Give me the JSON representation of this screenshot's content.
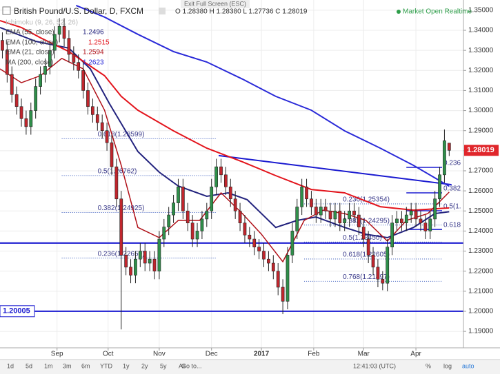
{
  "chart_data": {
    "type": "candlestick",
    "title": "British Pound/U.S. Dollar, D, FXCM",
    "ohlc_text": "O 1.28380 H 1.28380 L 1.27736 C 1.28019",
    "status": "Market Open Realtime",
    "exit_text": "Exit Full Screen (ESC)",
    "ichimoku_label": "Ichimoku (9, 26, 52, 26)",
    "x": [
      1,
      3,
      5,
      7,
      9,
      11,
      13,
      15,
      17,
      19,
      21,
      23,
      25,
      27,
      29,
      31,
      33,
      35,
      37,
      39,
      41,
      43,
      45,
      47,
      49,
      51,
      53,
      55,
      57,
      59,
      61,
      63,
      65,
      67,
      69,
      71,
      73,
      75,
      77,
      79,
      81,
      83,
      85,
      87,
      89,
      91,
      93,
      95,
      97,
      99,
      101,
      103,
      105,
      107,
      109,
      111,
      113,
      115,
      117,
      119,
      121,
      123,
      125,
      127,
      129,
      131,
      133,
      135,
      137,
      139,
      141,
      143,
      145,
      147,
      149,
      151,
      153,
      155,
      157,
      159,
      161,
      163,
      165,
      167,
      169,
      171,
      173,
      175,
      177,
      179,
      181,
      183,
      185,
      187,
      189
    ],
    "open": [
      1.335,
      1.33,
      1.318,
      1.308,
      1.302,
      1.296,
      1.292,
      1.3,
      1.312,
      1.318,
      1.322,
      1.33,
      1.338,
      1.342,
      1.336,
      1.328,
      1.324,
      1.32,
      1.31,
      1.302,
      1.298,
      1.294,
      1.29,
      1.284,
      1.272,
      1.256,
      1.228,
      1.222,
      1.218,
      1.226,
      1.23,
      1.224,
      1.226,
      1.22,
      1.236,
      1.242,
      1.248,
      1.254,
      1.262,
      1.25,
      1.244,
      1.236,
      1.24,
      1.246,
      1.25,
      1.262,
      1.272,
      1.268,
      1.262,
      1.256,
      1.25,
      1.244,
      1.238,
      1.236,
      1.232,
      1.23,
      1.226,
      1.224,
      1.22,
      1.212,
      1.205,
      1.228,
      1.24,
      1.252,
      1.262,
      1.256,
      1.252,
      1.248,
      1.252,
      1.25,
      1.246,
      1.25,
      1.244,
      1.246,
      1.25,
      1.248,
      1.242,
      1.236,
      1.228,
      1.222,
      1.216,
      1.214,
      1.232,
      1.244,
      1.246,
      1.244,
      1.248,
      1.25,
      1.246,
      1.244,
      1.24,
      1.246,
      1.256,
      1.268,
      1.2838
    ],
    "high": [
      1.339,
      1.334,
      1.322,
      1.312,
      1.306,
      1.3,
      1.304,
      1.316,
      1.322,
      1.326,
      1.334,
      1.342,
      1.346,
      1.346,
      1.34,
      1.332,
      1.328,
      1.324,
      1.314,
      1.306,
      1.302,
      1.298,
      1.294,
      1.288,
      1.276,
      1.26,
      1.232,
      1.226,
      1.23,
      1.234,
      1.234,
      1.23,
      1.23,
      1.24,
      1.246,
      1.252,
      1.258,
      1.266,
      1.266,
      1.254,
      1.248,
      1.244,
      1.25,
      1.254,
      1.266,
      1.276,
      1.276,
      1.272,
      1.266,
      1.26,
      1.254,
      1.248,
      1.242,
      1.24,
      1.236,
      1.234,
      1.23,
      1.228,
      1.224,
      1.216,
      1.232,
      1.244,
      1.256,
      1.266,
      1.266,
      1.26,
      1.256,
      1.256,
      1.256,
      1.254,
      1.254,
      1.254,
      1.25,
      1.254,
      1.254,
      1.252,
      1.246,
      1.24,
      1.232,
      1.226,
      1.22,
      1.236,
      1.248,
      1.25,
      1.25,
      1.252,
      1.254,
      1.254,
      1.25,
      1.248,
      1.25,
      1.26,
      1.272,
      1.2906,
      1.2838
    ],
    "low": [
      1.326,
      1.314,
      1.304,
      1.298,
      1.292,
      1.288,
      1.288,
      1.296,
      1.308,
      1.314,
      1.318,
      1.326,
      1.334,
      1.332,
      1.324,
      1.32,
      1.316,
      1.306,
      1.298,
      1.294,
      1.29,
      1.286,
      1.28,
      1.268,
      1.252,
      1.191,
      1.218,
      1.214,
      1.214,
      1.222,
      1.22,
      1.22,
      1.216,
      1.216,
      1.232,
      1.238,
      1.244,
      1.25,
      1.246,
      1.24,
      1.232,
      1.232,
      1.236,
      1.242,
      1.246,
      1.258,
      1.264,
      1.258,
      1.252,
      1.246,
      1.24,
      1.234,
      1.232,
      1.228,
      1.226,
      1.222,
      1.22,
      1.216,
      1.208,
      1.1986,
      1.201,
      1.224,
      1.236,
      1.248,
      1.252,
      1.248,
      1.244,
      1.244,
      1.246,
      1.242,
      1.242,
      1.24,
      1.24,
      1.242,
      1.244,
      1.238,
      1.232,
      1.224,
      1.218,
      1.212,
      1.2105,
      1.21,
      1.228,
      1.24,
      1.24,
      1.24,
      1.244,
      1.242,
      1.24,
      1.236,
      1.236,
      1.242,
      1.252,
      1.264,
      1.27736
    ],
    "close": [
      1.33,
      1.318,
      1.308,
      1.302,
      1.296,
      1.292,
      1.3,
      1.312,
      1.318,
      1.322,
      1.33,
      1.338,
      1.342,
      1.336,
      1.328,
      1.324,
      1.32,
      1.31,
      1.302,
      1.298,
      1.294,
      1.29,
      1.284,
      1.272,
      1.256,
      1.228,
      1.222,
      1.218,
      1.226,
      1.23,
      1.224,
      1.226,
      1.22,
      1.236,
      1.242,
      1.248,
      1.254,
      1.262,
      1.25,
      1.244,
      1.236,
      1.24,
      1.246,
      1.25,
      1.262,
      1.272,
      1.268,
      1.262,
      1.256,
      1.25,
      1.244,
      1.238,
      1.236,
      1.232,
      1.23,
      1.226,
      1.224,
      1.22,
      1.212,
      1.205,
      1.228,
      1.24,
      1.252,
      1.262,
      1.256,
      1.252,
      1.248,
      1.252,
      1.25,
      1.246,
      1.25,
      1.244,
      1.246,
      1.25,
      1.248,
      1.242,
      1.236,
      1.228,
      1.222,
      1.216,
      1.214,
      1.232,
      1.244,
      1.246,
      1.244,
      1.248,
      1.25,
      1.246,
      1.244,
      1.24,
      1.246,
      1.256,
      1.268,
      1.285,
      1.28019
    ],
    "up_color": "#2f8f4a",
    "down_color": "#c0262d",
    "xlim": [
      0,
      195
    ],
    "ylim": [
      1.1818,
      1.3551
    ],
    "xticks": [
      {
        "value": 24,
        "label": "Sep"
      },
      {
        "value": 45.5,
        "label": "Oct"
      },
      {
        "value": 67,
        "label": "Nov"
      },
      {
        "value": 89,
        "label": "Dec"
      },
      {
        "value": 110,
        "label": "2017"
      },
      {
        "value": 132,
        "label": "Feb"
      },
      {
        "value": 153,
        "label": "Mar"
      },
      {
        "value": 175,
        "label": "Apr"
      }
    ],
    "yticks": [
      {
        "value": 1.19,
        "label": "1.19000"
      },
      {
        "value": 1.2,
        "label": "1.20000"
      },
      {
        "value": 1.21,
        "label": "1.21000"
      },
      {
        "value": 1.22,
        "label": "1.22000"
      },
      {
        "value": 1.23,
        "label": "1.23000"
      },
      {
        "value": 1.24,
        "label": "1.24000"
      },
      {
        "value": 1.25,
        "label": "1.25000"
      },
      {
        "value": 1.26,
        "label": "1.26000"
      },
      {
        "value": 1.27,
        "label": "1.27000"
      },
      {
        "value": 1.28,
        "label": "1.28000"
      },
      {
        "value": 1.29,
        "label": "1.29000"
      },
      {
        "value": 1.3,
        "label": "1.30000"
      },
      {
        "value": 1.31,
        "label": "1.31000"
      },
      {
        "value": 1.32,
        "label": "1.32000"
      },
      {
        "value": 1.33,
        "label": "1.33000"
      },
      {
        "value": 1.34,
        "label": "1.34000"
      },
      {
        "value": 1.35,
        "label": "1.35000"
      }
    ],
    "grid": true,
    "lines": [
      {
        "name": "EMA (55, close)",
        "color": "#23237e",
        "x": [
          0,
          15,
          29,
          38,
          46,
          58,
          67,
          75,
          87,
          96,
          104,
          116,
          125,
          133,
          145,
          154,
          163,
          174,
          183,
          189
        ],
        "values": [
          1.3414,
          1.3345,
          1.3311,
          1.3208,
          1.3036,
          1.2796,
          1.2693,
          1.2624,
          1.2573,
          1.259,
          1.2556,
          1.2418,
          1.2453,
          1.247,
          1.2418,
          1.2384,
          1.2367,
          1.2418,
          1.2487,
          1.2496
        ]
      },
      {
        "name": "EMA (100, close)",
        "color": "#e3141c",
        "x": [
          0,
          9,
          17,
          29,
          44,
          51,
          58,
          73,
          87,
          102,
          116,
          131,
          145,
          160,
          174,
          189
        ],
        "values": [
          1.3448,
          1.3414,
          1.3363,
          1.3294,
          1.3174,
          1.3071,
          1.3002,
          1.2899,
          1.2813,
          1.2745,
          1.2676,
          1.2607,
          1.259,
          1.2521,
          1.2504,
          1.2515
        ]
      },
      {
        "name": "EMA (21, close)",
        "color": "#b01018",
        "x": [
          0,
          9,
          17,
          26,
          35,
          44,
          51,
          58,
          67,
          75,
          84,
          93,
          102,
          110,
          119,
          128,
          136,
          145,
          154,
          163,
          171,
          180,
          189
        ],
        "values": [
          1.3208,
          1.3139,
          1.3174,
          1.326,
          1.3208,
          1.3002,
          1.2727,
          1.2418,
          1.2367,
          1.2453,
          1.2453,
          1.259,
          1.2487,
          1.2384,
          1.2247,
          1.2453,
          1.2504,
          1.2487,
          1.2453,
          1.235,
          1.2453,
          1.2487,
          1.2594
        ]
      },
      {
        "name": "MA (200, close)",
        "color": "#2a2ad8",
        "x": [
          32,
          44,
          58,
          73,
          87,
          102,
          116,
          131,
          145,
          160,
          174,
          189
        ],
        "values": [
          1.3524,
          1.3466,
          1.338,
          1.3294,
          1.3242,
          1.3157,
          1.3071,
          1.3002,
          1.2899,
          1.2813,
          1.2727,
          1.2623
        ]
      }
    ],
    "hlines": [
      {
        "value": 1.234,
        "color": "#1a1ad0"
      },
      {
        "value": 1.20005,
        "color": "#1a1ad0"
      }
    ],
    "trendline": {
      "x": [
        92,
        190
      ],
      "values": [
        1.2776,
        1.2631
      ],
      "color": "#1a1ad0"
    },
    "fib": [
      {
        "text": "0.618(1.28599)",
        "price": 1.28599,
        "x": [
          26,
          91
        ]
      },
      {
        "text": "0.5(1.26762)",
        "price": 1.26762,
        "x": [
          26,
          91
        ]
      },
      {
        "text": "0.382(1.24925)",
        "price": 1.24925,
        "x": [
          26,
          91
        ]
      },
      {
        "text": "0.236(1.22650)",
        "price": 1.2265,
        "x": [
          26,
          91
        ]
      },
      {
        "text": "0.236(1.25354)",
        "price": 1.25354,
        "x": [
          128,
          186
        ]
      },
      {
        "text": "0.382(1.24295)",
        "price": 1.24295,
        "x": [
          128,
          186
        ]
      },
      {
        "text": "0.5(1.23450)",
        "price": 1.2345,
        "x": [
          128,
          186
        ]
      },
      {
        "text": "0.618(1.22605)",
        "price": 1.22605,
        "x": [
          128,
          186
        ]
      },
      {
        "text": "0.768(1.21497)",
        "price": 1.21497,
        "x": [
          128,
          186
        ]
      },
      {
        "text": "0.236",
        "price": 1.2717,
        "x": [
          171,
          186
        ]
      },
      {
        "text": "0.382",
        "price": 1.259,
        "x": [
          171,
          186
        ]
      },
      {
        "text": "0.5(1.",
        "price": 1.2501,
        "x": [
          171,
          186
        ]
      },
      {
        "text": "0.618",
        "price": 1.2408,
        "x": [
          171,
          186
        ]
      }
    ]
  },
  "toolbar": {
    "ranges": [
      "1d",
      "5d",
      "1m",
      "3m",
      "6m",
      "YTD",
      "1y",
      "2y",
      "5y",
      "All"
    ],
    "goto": "Go to...",
    "time": "12:41:03 (UTC)",
    "options": [
      "%",
      "log",
      "auto"
    ]
  }
}
